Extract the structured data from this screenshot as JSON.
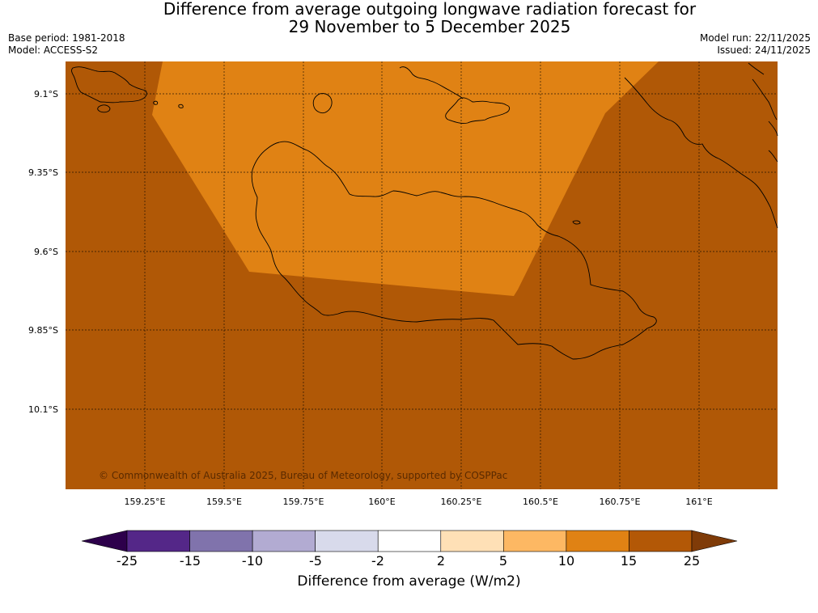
{
  "title": {
    "line1": "Difference from average outgoing longwave radiation forecast for",
    "line2": "29 November to 5 December 2025"
  },
  "meta": {
    "base_period": "Base period: 1981-2018",
    "model": "Model: ACCESS-S2",
    "model_run": "Model run: 22/11/2025",
    "issued": "Issued: 24/11/2025"
  },
  "map": {
    "copyright": "© Commonwealth of Australia 2025, Bureau of Meteorology, supported by COSPPac",
    "lat_labels": [
      "9.1°S",
      "9.35°S",
      "9.6°S",
      "9.85°S",
      "10.1°S"
    ],
    "lon_labels": [
      "159.25°E",
      "159.5°E",
      "159.75°E",
      "160°E",
      "160.25°E",
      "160.5°E",
      "160.75°E",
      "161°E"
    ],
    "colors": {
      "dark_orange": "#b05806",
      "mid_orange": "#e08214",
      "coast": "#000000",
      "grid": "#000000"
    }
  },
  "colorbar": {
    "title": "Difference from average (W/m2)",
    "ticks": [
      "-25",
      "-15",
      "-10",
      "-5",
      "-2",
      "2",
      "5",
      "10",
      "15",
      "25"
    ],
    "colors": [
      "#2d004b",
      "#542788",
      "#8073ac",
      "#b2abd2",
      "#d8daeb",
      "#ffffff",
      "#fee0b6",
      "#fdb863",
      "#e08214",
      "#b35806",
      "#7f3b08"
    ]
  }
}
